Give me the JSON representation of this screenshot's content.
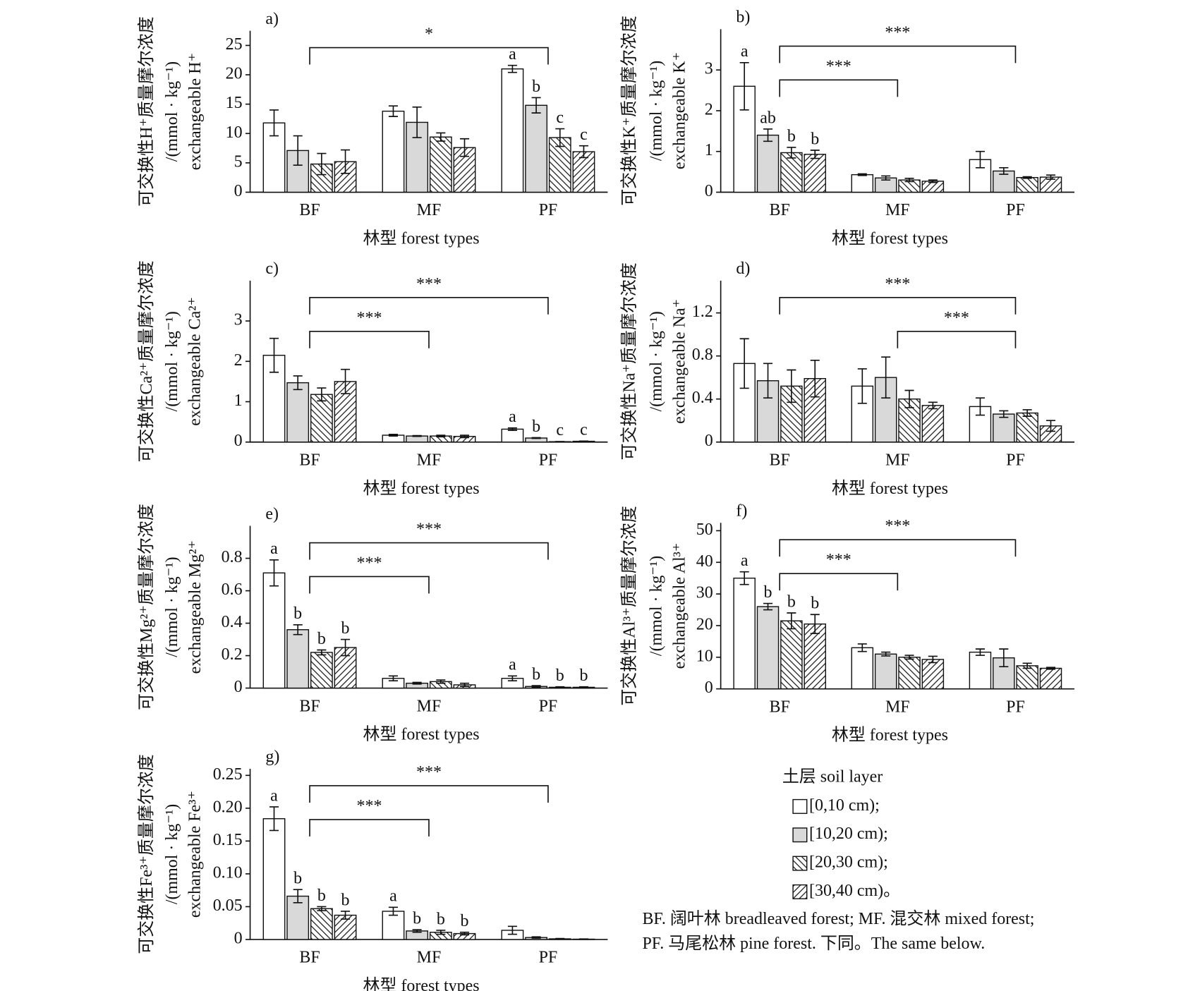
{
  "chart_data": [
    {
      "type": "bar",
      "panel": "a)",
      "ylabel": [
        "可交换性H⁺质量摩尔浓度",
        "/(mmol · kg⁻¹)",
        "exchangeable H⁺"
      ],
      "xlabel": "林型 forest types",
      "categories": [
        "BF",
        "MF",
        "PF"
      ],
      "ylim": [
        0,
        27.5
      ],
      "yticks": [
        0,
        5,
        10,
        15,
        20,
        25
      ],
      "series": [
        {
          "values": [
            11.8,
            13.8,
            21.0
          ],
          "errors": [
            2.2,
            0.9,
            0.6
          ],
          "letters": [
            null,
            null,
            "a"
          ]
        },
        {
          "values": [
            7.1,
            11.9,
            14.8
          ],
          "errors": [
            2.5,
            2.6,
            1.3
          ],
          "letters": [
            null,
            null,
            "b"
          ]
        },
        {
          "values": [
            4.8,
            9.4,
            9.3
          ],
          "errors": [
            1.8,
            0.7,
            1.5
          ],
          "letters": [
            null,
            null,
            "c"
          ]
        },
        {
          "values": [
            5.2,
            7.6,
            6.9
          ],
          "errors": [
            2.0,
            1.5,
            1.0
          ],
          "letters": [
            null,
            null,
            "c"
          ]
        }
      ],
      "brackets": [
        {
          "from": 0,
          "to": 2,
          "label": "*"
        }
      ]
    },
    {
      "type": "bar",
      "panel": "b)",
      "ylabel": [
        "可交换性K⁺质量摩尔浓度",
        "/(mmol · kg⁻¹)",
        "exchangeable K⁺"
      ],
      "xlabel": "林型 forest types",
      "categories": [
        "BF",
        "MF",
        "PF"
      ],
      "ylim": [
        0,
        4
      ],
      "yticks": [
        0,
        1,
        2,
        3
      ],
      "series": [
        {
          "values": [
            2.6,
            0.43,
            0.8
          ],
          "errors": [
            0.58,
            0.02,
            0.2
          ],
          "letters": [
            "a",
            null,
            null
          ]
        },
        {
          "values": [
            1.4,
            0.35,
            0.52
          ],
          "errors": [
            0.15,
            0.05,
            0.08
          ],
          "letters": [
            "ab",
            null,
            null
          ]
        },
        {
          "values": [
            0.97,
            0.3,
            0.36
          ],
          "errors": [
            0.13,
            0.04,
            0.02
          ],
          "letters": [
            "b",
            null,
            null
          ]
        },
        {
          "values": [
            0.93,
            0.27,
            0.37
          ],
          "errors": [
            0.1,
            0.03,
            0.05
          ],
          "letters": [
            "b",
            null,
            null
          ]
        }
      ],
      "brackets": [
        {
          "from": 0,
          "to": 2,
          "label": "***"
        },
        {
          "from": 0,
          "to": 1,
          "label": "***"
        }
      ]
    },
    {
      "type": "bar",
      "panel": "c)",
      "ylabel": [
        "可交换性Ca²⁺质量摩尔浓度",
        "/(mmol · kg⁻¹)",
        "exchangeable Ca²⁺"
      ],
      "xlabel": "林型 forest types",
      "categories": [
        "BF",
        "MF",
        "PF"
      ],
      "ylim": [
        0,
        4
      ],
      "yticks": [
        0,
        1,
        2,
        3
      ],
      "series": [
        {
          "values": [
            2.15,
            0.17,
            0.32
          ],
          "errors": [
            0.42,
            0.02,
            0.03
          ],
          "letters": [
            null,
            null,
            "a"
          ]
        },
        {
          "values": [
            1.47,
            0.15,
            0.1
          ],
          "errors": [
            0.17,
            0.01,
            0.01
          ],
          "letters": [
            null,
            null,
            "b"
          ]
        },
        {
          "values": [
            1.18,
            0.15,
            0.01
          ],
          "errors": [
            0.16,
            0.02,
            0.005
          ],
          "letters": [
            null,
            null,
            "c"
          ]
        },
        {
          "values": [
            1.5,
            0.14,
            0.02
          ],
          "errors": [
            0.3,
            0.03,
            0.005
          ],
          "letters": [
            null,
            null,
            "c"
          ]
        }
      ],
      "brackets": [
        {
          "from": 0,
          "to": 2,
          "label": "***"
        },
        {
          "from": 0,
          "to": 1,
          "label": "***"
        }
      ]
    },
    {
      "type": "bar",
      "panel": "d)",
      "ylabel": [
        "可交换性Na⁺质量摩尔浓度",
        "/(mmol · kg⁻¹)",
        "exchangeable Na⁺"
      ],
      "xlabel": "林型 forest types",
      "categories": [
        "BF",
        "MF",
        "PF"
      ],
      "ylim": [
        0,
        1.5
      ],
      "yticks": [
        0,
        0.4,
        0.8,
        1.2
      ],
      "series": [
        {
          "values": [
            0.73,
            0.52,
            0.33
          ],
          "errors": [
            0.23,
            0.16,
            0.08
          ],
          "letters": [
            null,
            null,
            null
          ]
        },
        {
          "values": [
            0.57,
            0.6,
            0.26
          ],
          "errors": [
            0.16,
            0.19,
            0.03
          ],
          "letters": [
            null,
            null,
            null
          ]
        },
        {
          "values": [
            0.52,
            0.4,
            0.27
          ],
          "errors": [
            0.15,
            0.08,
            0.03
          ],
          "letters": [
            null,
            null,
            null
          ]
        },
        {
          "values": [
            0.59,
            0.34,
            0.15
          ],
          "errors": [
            0.17,
            0.03,
            0.05
          ],
          "letters": [
            null,
            null,
            null
          ]
        }
      ],
      "brackets": [
        {
          "from": 0,
          "to": 2,
          "label": "***"
        },
        {
          "from": 1,
          "to": 2,
          "label": "***"
        }
      ]
    },
    {
      "type": "bar",
      "panel": "e)",
      "ylabel": [
        "可交换性Mg²⁺质量摩尔浓度",
        "/(mmol · kg⁻¹)",
        "exchangeable Mg²⁺"
      ],
      "xlabel": "林型 forest types",
      "categories": [
        "BF",
        "MF",
        "PF"
      ],
      "ylim": [
        0,
        1
      ],
      "yticks": [
        0,
        0.2,
        0.4,
        0.6,
        0.8
      ],
      "series": [
        {
          "values": [
            0.71,
            0.06,
            0.06
          ],
          "errors": [
            0.08,
            0.015,
            0.015
          ],
          "letters": [
            "a",
            null,
            "a"
          ]
        },
        {
          "values": [
            0.36,
            0.03,
            0.01
          ],
          "errors": [
            0.03,
            0.005,
            0.005
          ],
          "letters": [
            "b",
            null,
            "b"
          ]
        },
        {
          "values": [
            0.22,
            0.04,
            0.005
          ],
          "errors": [
            0.015,
            0.01,
            0.003
          ],
          "letters": [
            "b",
            null,
            "b"
          ]
        },
        {
          "values": [
            0.25,
            0.02,
            0.005
          ],
          "errors": [
            0.05,
            0.01,
            0.003
          ],
          "letters": [
            "b",
            null,
            "b"
          ]
        }
      ],
      "brackets": [
        {
          "from": 0,
          "to": 2,
          "label": "***"
        },
        {
          "from": 0,
          "to": 1,
          "label": "***"
        }
      ]
    },
    {
      "type": "bar",
      "panel": "f)",
      "ylabel": [
        "可交换性Al³⁺质量摩尔浓度",
        "/(mmol · kg⁻¹)",
        "exchangeable Al³⁺"
      ],
      "xlabel": "林型 forest types",
      "categories": [
        "BF",
        "MF",
        "PF"
      ],
      "ylim": [
        0,
        52.5
      ],
      "yticks": [
        0,
        10,
        20,
        30,
        40,
        50
      ],
      "series": [
        {
          "values": [
            35,
            13,
            11.6
          ],
          "errors": [
            2,
            1.2,
            1
          ],
          "letters": [
            "a",
            null,
            null
          ]
        },
        {
          "values": [
            26,
            11,
            9.8
          ],
          "errors": [
            1,
            0.6,
            2.8
          ],
          "letters": [
            "b",
            null,
            null
          ]
        },
        {
          "values": [
            21.5,
            10,
            7.3
          ],
          "errors": [
            2.5,
            0.6,
            0.8
          ],
          "letters": [
            "b",
            null,
            null
          ]
        },
        {
          "values": [
            20.5,
            9.3,
            6.5
          ],
          "errors": [
            3,
            1,
            0.3
          ],
          "letters": [
            "b",
            null,
            null
          ]
        }
      ],
      "brackets": [
        {
          "from": 0,
          "to": 2,
          "label": "***"
        },
        {
          "from": 0,
          "to": 1,
          "label": "***"
        }
      ]
    },
    {
      "type": "bar",
      "panel": "g)",
      "ylabel": [
        "可交换性Fe³⁺质量摩尔浓度",
        "/(mmol · kg⁻¹)",
        "exchangeable Fe³⁺"
      ],
      "xlabel": "林型 forest types",
      "categories": [
        "BF",
        "MF",
        "PF"
      ],
      "ylim": [
        0,
        0.26
      ],
      "yticks": [
        0,
        0.05,
        {
          "value": 0.1,
          "label": "0.10"
        },
        0.15,
        {
          "value": 0.2,
          "label": "0.20"
        },
        0.25
      ],
      "series": [
        {
          "values": [
            0.184,
            0.043,
            0.014
          ],
          "errors": [
            0.018,
            0.006,
            0.006
          ],
          "letters": [
            "a",
            "a",
            null
          ]
        },
        {
          "values": [
            0.066,
            0.013,
            0.003
          ],
          "errors": [
            0.01,
            0.002,
            0.001
          ],
          "letters": [
            "b",
            "b",
            null
          ]
        },
        {
          "values": [
            0.047,
            0.011,
            0.001
          ],
          "errors": [
            0.003,
            0.003,
            0.0005
          ],
          "letters": [
            "b",
            "b",
            null
          ]
        },
        {
          "values": [
            0.037,
            0.009,
            0.0005
          ],
          "errors": [
            0.006,
            0.002,
            0.0003
          ],
          "letters": [
            "b",
            "b",
            null
          ]
        }
      ],
      "brackets": [
        {
          "from": 0,
          "to": 2,
          "label": "***"
        },
        {
          "from": 0,
          "to": 1,
          "label": "***"
        }
      ]
    }
  ],
  "legend": {
    "title": "土层 soil layer",
    "items": [
      {
        "label": "[0,10 cm);",
        "fill": "#ffffff",
        "hatch": "none"
      },
      {
        "label": "[10,20 cm);",
        "fill": "#d9d9d9",
        "hatch": "none"
      },
      {
        "label": "[20,30 cm);",
        "fill": "#ffffff",
        "hatch": "back"
      },
      {
        "label": "[30,40 cm)。",
        "fill": "#ffffff",
        "hatch": "forward"
      }
    ]
  },
  "note": [
    "BF. 阔叶林 breadleaved forest; MF. 混交林 mixed forest;",
    "PF. 马尾松林 pine forest. 下同。The same below."
  ]
}
